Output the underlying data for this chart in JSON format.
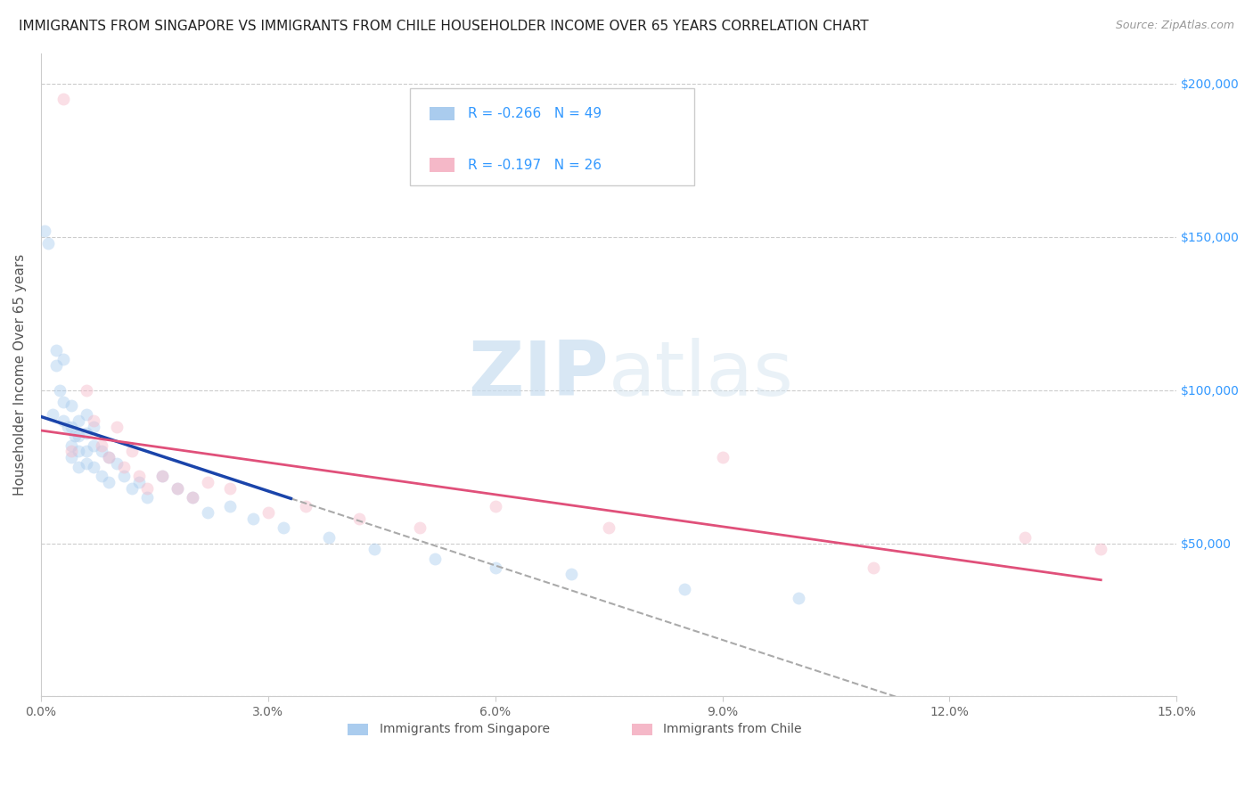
{
  "title": "IMMIGRANTS FROM SINGAPORE VS IMMIGRANTS FROM CHILE HOUSEHOLDER INCOME OVER 65 YEARS CORRELATION CHART",
  "source": "Source: ZipAtlas.com",
  "ylabel": "Householder Income Over 65 years",
  "legend_label_1": "Immigrants from Singapore",
  "legend_label_2": "Immigrants from Chile",
  "r1": -0.266,
  "n1": 49,
  "r2": -0.197,
  "n2": 26,
  "color_singapore": "#aaccee",
  "color_chile": "#f5b8c8",
  "line_color_singapore": "#1a44aa",
  "line_color_chile": "#e0507a",
  "xlim": [
    0.0,
    0.15
  ],
  "ylim": [
    0,
    210000
  ],
  "yticks": [
    0,
    50000,
    100000,
    150000,
    200000
  ],
  "ytick_labels": [
    "",
    "$50,000",
    "$100,000",
    "$150,000",
    "$200,000"
  ],
  "xticks": [
    0.0,
    0.03,
    0.06,
    0.09,
    0.12,
    0.15
  ],
  "xtick_labels": [
    "0.0%",
    "3.0%",
    "6.0%",
    "9.0%",
    "12.0%",
    "15.0%"
  ],
  "singapore_x": [
    0.0005,
    0.001,
    0.0015,
    0.002,
    0.002,
    0.0025,
    0.003,
    0.003,
    0.003,
    0.0035,
    0.004,
    0.004,
    0.004,
    0.004,
    0.0045,
    0.005,
    0.005,
    0.005,
    0.005,
    0.006,
    0.006,
    0.006,
    0.006,
    0.007,
    0.007,
    0.007,
    0.008,
    0.008,
    0.009,
    0.009,
    0.01,
    0.011,
    0.012,
    0.013,
    0.014,
    0.016,
    0.018,
    0.02,
    0.022,
    0.025,
    0.028,
    0.032,
    0.038,
    0.044,
    0.052,
    0.06,
    0.07,
    0.085,
    0.1
  ],
  "singapore_y": [
    152000,
    148000,
    92000,
    113000,
    108000,
    100000,
    110000,
    96000,
    90000,
    88000,
    95000,
    88000,
    82000,
    78000,
    85000,
    90000,
    85000,
    80000,
    75000,
    92000,
    86000,
    80000,
    76000,
    88000,
    82000,
    75000,
    80000,
    72000,
    78000,
    70000,
    76000,
    72000,
    68000,
    70000,
    65000,
    72000,
    68000,
    65000,
    60000,
    62000,
    58000,
    55000,
    52000,
    48000,
    45000,
    42000,
    40000,
    35000,
    32000
  ],
  "chile_x": [
    0.003,
    0.004,
    0.006,
    0.007,
    0.008,
    0.009,
    0.01,
    0.011,
    0.012,
    0.013,
    0.014,
    0.016,
    0.018,
    0.02,
    0.022,
    0.025,
    0.03,
    0.035,
    0.042,
    0.05,
    0.06,
    0.075,
    0.09,
    0.11,
    0.13,
    0.14
  ],
  "chile_y": [
    195000,
    80000,
    100000,
    90000,
    82000,
    78000,
    88000,
    75000,
    80000,
    72000,
    68000,
    72000,
    68000,
    65000,
    70000,
    68000,
    60000,
    62000,
    58000,
    55000,
    62000,
    55000,
    78000,
    42000,
    52000,
    48000
  ],
  "background_color": "#ffffff",
  "grid_color": "#cccccc",
  "title_fontsize": 11,
  "axis_label_fontsize": 11,
  "tick_fontsize": 10,
  "marker_size": 100,
  "marker_alpha": 0.45
}
